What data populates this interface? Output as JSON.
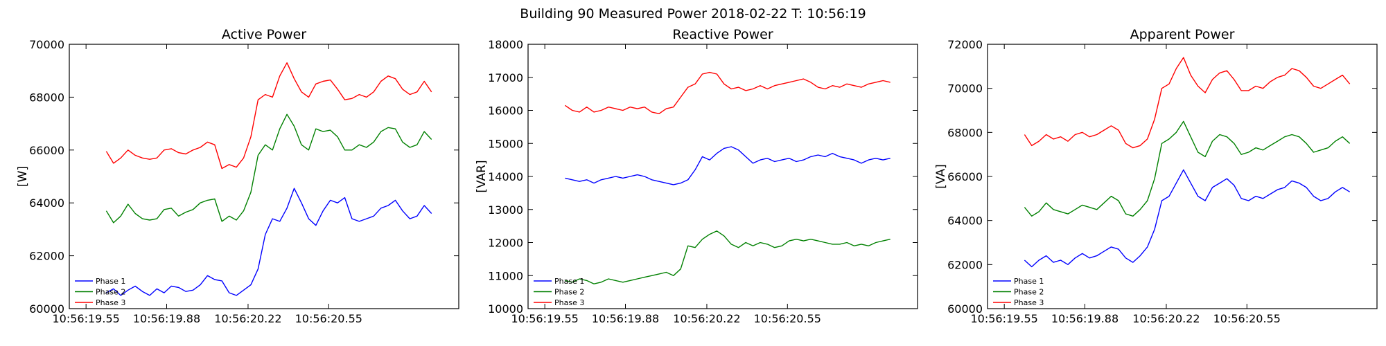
{
  "suptitle": "Building 90 Measured Power 2018-02-22 T: 10:56:19",
  "chart_data": [
    {
      "type": "line",
      "title": "Active Power",
      "xlabel": "",
      "ylabel": "[W]",
      "ylim": [
        60000,
        70000
      ],
      "yticks": [
        60000,
        62000,
        64000,
        66000,
        68000,
        70000
      ],
      "xticklabels": [
        "10:56:19.55",
        "10:56:19.88",
        "10:56:20.22",
        "10:56:20.55"
      ],
      "grid": false,
      "legend_placement": "lower-left",
      "x_samples": 46,
      "series": [
        {
          "name": "Phase 1",
          "color": "#0000ff",
          "values": [
            60600,
            60750,
            60500,
            60700,
            60850,
            60650,
            60500,
            60750,
            60600,
            60850,
            60800,
            60650,
            60700,
            60900,
            61250,
            61100,
            61050,
            60600,
            60500,
            60700,
            60900,
            61500,
            62800,
            63400,
            63300,
            63800,
            64550,
            64000,
            63400,
            63150,
            63700,
            64100,
            64000,
            64200,
            63400,
            63300,
            63400,
            63500,
            63800,
            63900,
            64100,
            63700,
            63400,
            63500,
            63900,
            63600
          ]
        },
        {
          "name": "Phase 2",
          "color": "#008000",
          "values": [
            63700,
            63250,
            63500,
            63950,
            63600,
            63400,
            63350,
            63400,
            63750,
            63800,
            63500,
            63650,
            63750,
            64000,
            64100,
            64150,
            63300,
            63500,
            63350,
            63700,
            64400,
            65800,
            66200,
            66000,
            66800,
            67350,
            66900,
            66200,
            66000,
            66800,
            66700,
            66750,
            66500,
            66000,
            66000,
            66200,
            66100,
            66300,
            66700,
            66850,
            66800,
            66300,
            66100,
            66200,
            66700,
            66400
          ]
        },
        {
          "name": "Phase 3",
          "color": "#ff0000",
          "values": [
            65950,
            65500,
            65700,
            66000,
            65800,
            65700,
            65650,
            65700,
            66000,
            66050,
            65900,
            65850,
            66000,
            66100,
            66300,
            66200,
            65300,
            65450,
            65350,
            65700,
            66500,
            67900,
            68100,
            68000,
            68800,
            69300,
            68700,
            68200,
            68000,
            68500,
            68600,
            68650,
            68300,
            67900,
            67950,
            68100,
            68000,
            68200,
            68600,
            68800,
            68700,
            68300,
            68100,
            68200,
            68600,
            68200
          ]
        }
      ]
    },
    {
      "type": "line",
      "title": "Reactive Power",
      "xlabel": "",
      "ylabel": "[VAR]",
      "ylim": [
        10000,
        18000
      ],
      "yticks": [
        10000,
        11000,
        12000,
        13000,
        14000,
        15000,
        16000,
        17000,
        18000
      ],
      "xticklabels": [
        "10:56:19.55",
        "10:56:19.88",
        "10:56:20.22",
        "10:56:20.55"
      ],
      "grid": false,
      "legend_placement": "lower-left",
      "x_samples": 46,
      "series": [
        {
          "name": "Phase 1",
          "color": "#0000ff",
          "values": [
            13950,
            13900,
            13850,
            13900,
            13800,
            13900,
            13950,
            14000,
            13950,
            14000,
            14050,
            14000,
            13900,
            13850,
            13800,
            13750,
            13800,
            13900,
            14200,
            14600,
            14500,
            14700,
            14850,
            14900,
            14800,
            14600,
            14400,
            14500,
            14550,
            14450,
            14500,
            14550,
            14450,
            14500,
            14600,
            14650,
            14600,
            14700,
            14600,
            14550,
            14500,
            14400,
            14500,
            14550,
            14500,
            14550
          ]
        },
        {
          "name": "Phase 2",
          "color": "#008000",
          "values": [
            10850,
            10800,
            10900,
            10850,
            10750,
            10800,
            10900,
            10850,
            10800,
            10850,
            10900,
            10950,
            11000,
            11050,
            11100,
            11000,
            11200,
            11900,
            11850,
            12100,
            12250,
            12350,
            12200,
            11950,
            11850,
            12000,
            11900,
            12000,
            11950,
            11850,
            11900,
            12050,
            12100,
            12050,
            12100,
            12050,
            12000,
            11950,
            11950,
            12000,
            11900,
            11950,
            11900,
            12000,
            12050,
            12100
          ]
        },
        {
          "name": "Phase 3",
          "color": "#ff0000",
          "values": [
            16150,
            16000,
            15950,
            16100,
            15950,
            16000,
            16100,
            16050,
            16000,
            16100,
            16050,
            16100,
            15950,
            15900,
            16050,
            16100,
            16400,
            16700,
            16800,
            17100,
            17150,
            17100,
            16800,
            16650,
            16700,
            16600,
            16650,
            16750,
            16650,
            16750,
            16800,
            16850,
            16900,
            16950,
            16850,
            16700,
            16650,
            16750,
            16700,
            16800,
            16750,
            16700,
            16800,
            16850,
            16900,
            16850
          ]
        }
      ]
    },
    {
      "type": "line",
      "title": "Apparent Power",
      "xlabel": "",
      "ylabel": "[VA]",
      "ylim": [
        60000,
        72000
      ],
      "yticks": [
        60000,
        62000,
        64000,
        66000,
        68000,
        70000,
        72000
      ],
      "xticklabels": [
        "10:56:19.55",
        "10:56:19.88",
        "10:56:20.22",
        "10:56:20.55"
      ],
      "grid": false,
      "legend_placement": "lower-left",
      "x_samples": 46,
      "series": [
        {
          "name": "Phase 1",
          "color": "#0000ff",
          "values": [
            62200,
            61900,
            62200,
            62400,
            62100,
            62200,
            62000,
            62300,
            62500,
            62300,
            62400,
            62600,
            62800,
            62700,
            62300,
            62100,
            62400,
            62800,
            63600,
            64900,
            65100,
            65700,
            66300,
            65700,
            65100,
            64900,
            65500,
            65700,
            65900,
            65600,
            65000,
            64900,
            65100,
            65000,
            65200,
            65400,
            65500,
            65800,
            65700,
            65500,
            65100,
            64900,
            65000,
            65300,
            65500,
            65300
          ]
        },
        {
          "name": "Phase 2",
          "color": "#008000",
          "values": [
            64600,
            64200,
            64400,
            64800,
            64500,
            64400,
            64300,
            64500,
            64700,
            64600,
            64500,
            64800,
            65100,
            64900,
            64300,
            64200,
            64500,
            64900,
            65900,
            67500,
            67700,
            68000,
            68500,
            67800,
            67100,
            66900,
            67600,
            67900,
            67800,
            67500,
            67000,
            67100,
            67300,
            67200,
            67400,
            67600,
            67800,
            67900,
            67800,
            67500,
            67100,
            67200,
            67300,
            67600,
            67800,
            67500
          ]
        },
        {
          "name": "Phase 3",
          "color": "#ff0000",
          "values": [
            67900,
            67400,
            67600,
            67900,
            67700,
            67800,
            67600,
            67900,
            68000,
            67800,
            67900,
            68100,
            68300,
            68100,
            67500,
            67300,
            67400,
            67700,
            68600,
            70000,
            70200,
            70900,
            71400,
            70600,
            70100,
            69800,
            70400,
            70700,
            70800,
            70400,
            69900,
            69900,
            70100,
            70000,
            70300,
            70500,
            70600,
            70900,
            70800,
            70500,
            70100,
            70000,
            70200,
            70400,
            70600,
            70200
          ]
        }
      ]
    }
  ]
}
